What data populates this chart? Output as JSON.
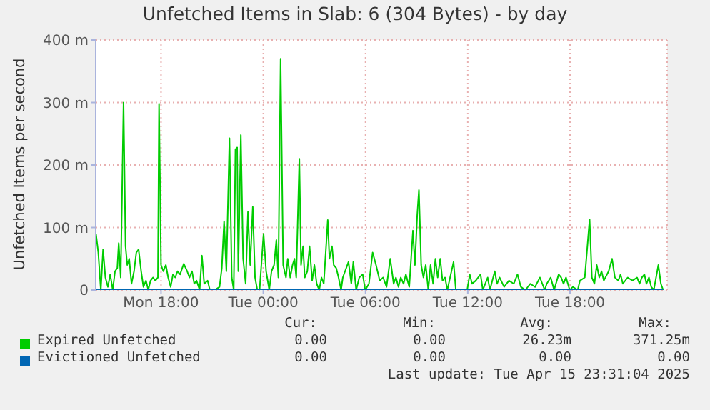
{
  "chart_data": {
    "type": "line",
    "title": "Unfetched Items in Slab: 6 (304 Bytes) - by day",
    "ylabel": "Unfetched Items per second",
    "xlim": [
      "2025-04-14T14:10",
      "2025-04-15T23:42"
    ],
    "ylim": [
      0,
      400
    ],
    "xticks": [
      {
        "value": "2025-04-14T18:00",
        "label": "Mon 18:00"
      },
      {
        "value": "2025-04-15T00:00",
        "label": "Tue 00:00"
      },
      {
        "value": "2025-04-15T06:00",
        "label": "Tue 06:00"
      },
      {
        "value": "2025-04-15T12:00",
        "label": "Tue 12:00"
      },
      {
        "value": "2025-04-15T18:00",
        "label": "Tue 18:00"
      }
    ],
    "yticks": [
      {
        "value": 0,
        "label": "0"
      },
      {
        "value": 100,
        "label": "100 m"
      },
      {
        "value": 200,
        "label": "200 m"
      },
      {
        "value": 300,
        "label": "300 m"
      },
      {
        "value": 400,
        "label": "400 m"
      }
    ],
    "grid": true,
    "legend": "bottom",
    "series": [
      {
        "name": "Expired Unfetched",
        "color": "#00cc00",
        "x": [
          "2025-04-14T14:11",
          "2025-04-14T14:19",
          "2025-04-14T14:28",
          "2025-04-14T14:36",
          "2025-04-14T14:44",
          "2025-04-14T14:53",
          "2025-04-14T15:01",
          "2025-04-14T15:10",
          "2025-04-14T15:18",
          "2025-04-14T15:26",
          "2025-04-14T15:31",
          "2025-04-14T15:38",
          "2025-04-14T15:48",
          "2025-04-14T15:55",
          "2025-04-14T16:01",
          "2025-04-14T16:08",
          "2025-04-14T16:16",
          "2025-04-14T16:25",
          "2025-04-14T16:33",
          "2025-04-14T16:41",
          "2025-04-14T16:50",
          "2025-04-14T16:58",
          "2025-04-14T17:07",
          "2025-04-14T17:15",
          "2025-04-14T17:23",
          "2025-04-14T17:32",
          "2025-04-14T17:40",
          "2025-04-14T17:49",
          "2025-04-14T17:53",
          "2025-04-14T18:00",
          "2025-04-14T18:08",
          "2025-04-14T18:17",
          "2025-04-14T18:25",
          "2025-04-14T18:34",
          "2025-04-14T18:42",
          "2025-04-14T18:50",
          "2025-04-14T18:58",
          "2025-04-14T19:07",
          "2025-04-14T19:20",
          "2025-04-14T19:32",
          "2025-04-14T19:40",
          "2025-04-14T19:49",
          "2025-04-14T19:57",
          "2025-04-14T20:05",
          "2025-04-14T20:16",
          "2025-04-14T20:24",
          "2025-04-14T20:32",
          "2025-04-14T20:44",
          "2025-04-14T20:52",
          "2025-04-14T21:09",
          "2025-04-14T21:26",
          "2025-04-14T21:34",
          "2025-04-14T21:42",
          "2025-04-14T21:50",
          "2025-04-14T22:01",
          "2025-04-14T22:09",
          "2025-04-14T22:16",
          "2025-04-14T22:22",
          "2025-04-14T22:28",
          "2025-04-14T22:32",
          "2025-04-14T22:41",
          "2025-04-14T22:49",
          "2025-04-14T22:58",
          "2025-04-14T23:06",
          "2025-04-14T23:14",
          "2025-04-14T23:23",
          "2025-04-14T23:31",
          "2025-04-14T23:39",
          "2025-04-14T23:47",
          "2025-04-15T00:01",
          "2025-04-15T00:10",
          "2025-04-15T00:21",
          "2025-04-15T00:29",
          "2025-04-15T00:38",
          "2025-04-15T00:46",
          "2025-04-15T00:53",
          "2025-04-15T01:01",
          "2025-04-15T01:10",
          "2025-04-15T01:20",
          "2025-04-15T01:26",
          "2025-04-15T01:35",
          "2025-04-15T01:43",
          "2025-04-15T01:50",
          "2025-04-15T01:56",
          "2025-04-15T02:07",
          "2025-04-15T02:13",
          "2025-04-15T02:20",
          "2025-04-15T02:26",
          "2025-04-15T02:35",
          "2025-04-15T02:43",
          "2025-04-15T02:52",
          "2025-04-15T03:00",
          "2025-04-15T03:08",
          "2025-04-15T03:17",
          "2025-04-15T03:25",
          "2025-04-15T03:33",
          "2025-04-15T03:47",
          "2025-04-15T03:53",
          "2025-04-15T04:02",
          "2025-04-15T04:08",
          "2025-04-15T04:17",
          "2025-04-15T04:25",
          "2025-04-15T04:34",
          "2025-04-15T04:40",
          "2025-04-15T05:00",
          "2025-04-15T05:10",
          "2025-04-15T05:17",
          "2025-04-15T05:27",
          "2025-04-15T05:38",
          "2025-04-15T05:50",
          "2025-04-15T05:59",
          "2025-04-15T06:12",
          "2025-04-15T06:25",
          "2025-04-15T06:37",
          "2025-04-15T06:50",
          "2025-04-15T07:02",
          "2025-04-15T07:14",
          "2025-04-15T07:27",
          "2025-04-15T07:39",
          "2025-04-15T07:47",
          "2025-04-15T07:56",
          "2025-04-15T08:04",
          "2025-04-15T08:14",
          "2025-04-15T08:22",
          "2025-04-15T08:34",
          "2025-04-15T08:47",
          "2025-04-15T08:54",
          "2025-04-15T09:02",
          "2025-04-15T09:08",
          "2025-04-15T09:16",
          "2025-04-15T09:24",
          "2025-04-15T09:32",
          "2025-04-15T09:41",
          "2025-04-15T09:49",
          "2025-04-15T09:58",
          "2025-04-15T10:06",
          "2025-04-15T10:14",
          "2025-04-15T10:23",
          "2025-04-15T10:31",
          "2025-04-15T10:40",
          "2025-04-15T10:48",
          "2025-04-15T11:10",
          "2025-04-15T11:18",
          "2025-04-15T11:58",
          "2025-04-15T12:07",
          "2025-04-15T12:15",
          "2025-04-15T12:28",
          "2025-04-15T12:45",
          "2025-04-15T12:53",
          "2025-04-15T13:10",
          "2025-04-15T13:18",
          "2025-04-15T13:35",
          "2025-04-15T13:43",
          "2025-04-15T13:52",
          "2025-04-15T14:08",
          "2025-04-15T14:25",
          "2025-04-15T14:42",
          "2025-04-15T14:55",
          "2025-04-15T15:07",
          "2025-04-15T15:23",
          "2025-04-15T15:40",
          "2025-04-15T15:57",
          "2025-04-15T16:14",
          "2025-04-15T16:31",
          "2025-04-15T16:38",
          "2025-04-15T16:52",
          "2025-04-15T17:04",
          "2025-04-15T17:20",
          "2025-04-15T17:29",
          "2025-04-15T17:37",
          "2025-04-15T17:46",
          "2025-04-15T17:59",
          "2025-04-15T18:10",
          "2025-04-15T18:27",
          "2025-04-15T18:35",
          "2025-04-15T18:52",
          "2025-04-15T19:09",
          "2025-04-15T19:17",
          "2025-04-15T19:26",
          "2025-04-15T19:34",
          "2025-04-15T19:43",
          "2025-04-15T19:51",
          "2025-04-15T19:59",
          "2025-04-15T20:16",
          "2025-04-15T20:28",
          "2025-04-15T20:38",
          "2025-04-15T20:50",
          "2025-04-15T20:58",
          "2025-04-15T21:06",
          "2025-04-15T21:23",
          "2025-04-15T21:40",
          "2025-04-15T21:56",
          "2025-04-15T22:05",
          "2025-04-15T22:13",
          "2025-04-15T22:22",
          "2025-04-15T22:29",
          "2025-04-15T22:38",
          "2025-04-15T22:46",
          "2025-04-15T22:55",
          "2025-04-15T23:11",
          "2025-04-15T23:20",
          "2025-04-15T23:28"
        ],
        "values": [
          90,
          60,
          0,
          65,
          20,
          5,
          25,
          0,
          30,
          35,
          75,
          20,
          300,
          70,
          40,
          50,
          10,
          30,
          60,
          65,
          30,
          5,
          15,
          0,
          15,
          20,
          15,
          20,
          298,
          40,
          30,
          40,
          20,
          5,
          25,
          20,
          30,
          25,
          42,
          30,
          20,
          30,
          10,
          15,
          0,
          55,
          10,
          15,
          0,
          0,
          5,
          35,
          110,
          30,
          243,
          20,
          0,
          225,
          228,
          30,
          248,
          50,
          10,
          125,
          40,
          133,
          20,
          0,
          0,
          90,
          30,
          0,
          30,
          40,
          80,
          20,
          370,
          40,
          20,
          50,
          20,
          40,
          50,
          20,
          210,
          40,
          70,
          20,
          30,
          70,
          15,
          40,
          10,
          0,
          20,
          10,
          112,
          50,
          70,
          40,
          35,
          20,
          0,
          20,
          45,
          10,
          45,
          0,
          20,
          25,
          0,
          10,
          60,
          40,
          15,
          20,
          5,
          50,
          10,
          20,
          5,
          20,
          10,
          25,
          5,
          95,
          40,
          120,
          160,
          40,
          20,
          40,
          0,
          40,
          10,
          50,
          20,
          50,
          15,
          20,
          0,
          45,
          0,
          0,
          25,
          10,
          15,
          25,
          0,
          20,
          0,
          30,
          10,
          20,
          5,
          15,
          10,
          25,
          5,
          0,
          10,
          5,
          20,
          0,
          10,
          20,
          0,
          25,
          20,
          10,
          20,
          0,
          5,
          0,
          15,
          20,
          113,
          20,
          10,
          40,
          20,
          30,
          15,
          30,
          50,
          20,
          15,
          25,
          10,
          20,
          15,
          20,
          10,
          20,
          25,
          10,
          20,
          5,
          0,
          40,
          10,
          0
        ]
      },
      {
        "name": "Evictioned Unfetched",
        "color": "#0066b3",
        "x": [
          "2025-04-14T14:11",
          "2025-04-15T23:28"
        ],
        "values": [
          0,
          0
        ]
      }
    ],
    "annotations": [
      "Cur:",
      "Min:",
      "Avg:",
      "Max:",
      "0.00",
      "0.00",
      "26.23m",
      "371.25m",
      "0.00",
      "0.00",
      "0.00",
      "0.00",
      "Last update: Tue Apr 15 23:31:04 2025"
    ]
  }
}
